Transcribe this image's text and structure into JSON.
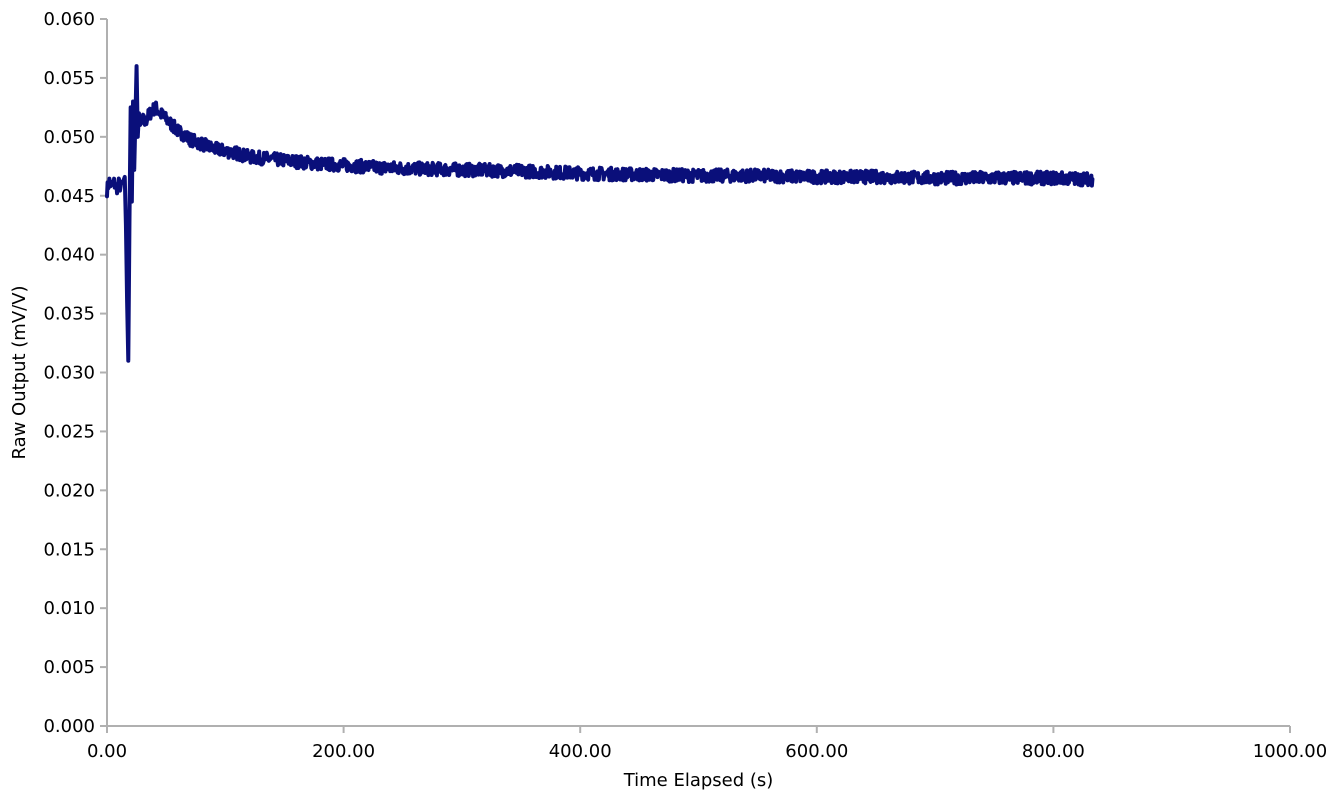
{
  "chart_data": {
    "type": "line",
    "title": "",
    "xlabel": "Time Elapsed (s)",
    "ylabel": "Raw Output (mV/V)",
    "xlim": [
      0,
      1000
    ],
    "ylim": [
      0,
      0.06
    ],
    "x_ticks": [
      "0.00",
      "200.00",
      "400.00",
      "600.00",
      "800.00",
      "1000.00"
    ],
    "y_ticks": [
      "0.000",
      "0.005",
      "0.010",
      "0.015",
      "0.020",
      "0.025",
      "0.030",
      "0.035",
      "0.040",
      "0.045",
      "0.050",
      "0.055",
      "0.060"
    ],
    "grid": false,
    "legend": "none",
    "series": [
      {
        "color": "#0a0f7a",
        "x": [
          0,
          2,
          4,
          6,
          8,
          10,
          12,
          14,
          15,
          16,
          17,
          18,
          19,
          20,
          21,
          22,
          23,
          24,
          25,
          26,
          27,
          28,
          30,
          32,
          35,
          38,
          41,
          44,
          47,
          50,
          55,
          60,
          65,
          70,
          75,
          80,
          90,
          100,
          110,
          120,
          140,
          160,
          180,
          200,
          230,
          260,
          300,
          350,
          400,
          450,
          500,
          550,
          600,
          650,
          700,
          750,
          800,
          833
        ],
        "y": [
          0.0455,
          0.0462,
          0.0458,
          0.0461,
          0.0456,
          0.046,
          0.0457,
          0.0463,
          0.0466,
          0.0425,
          0.036,
          0.031,
          0.043,
          0.0525,
          0.0445,
          0.053,
          0.0472,
          0.0515,
          0.056,
          0.05,
          0.052,
          0.051,
          0.0515,
          0.0512,
          0.0518,
          0.0522,
          0.0525,
          0.0521,
          0.0518,
          0.0515,
          0.051,
          0.0505,
          0.0502,
          0.0498,
          0.0496,
          0.0494,
          0.049,
          0.0488,
          0.0486,
          0.0483,
          0.0481,
          0.0479,
          0.0477,
          0.0476,
          0.0474,
          0.0473,
          0.0472,
          0.0471,
          0.0469,
          0.0468,
          0.0467,
          0.0467,
          0.0466,
          0.0466,
          0.0465,
          0.0465,
          0.0465,
          0.0464
        ]
      }
    ]
  }
}
